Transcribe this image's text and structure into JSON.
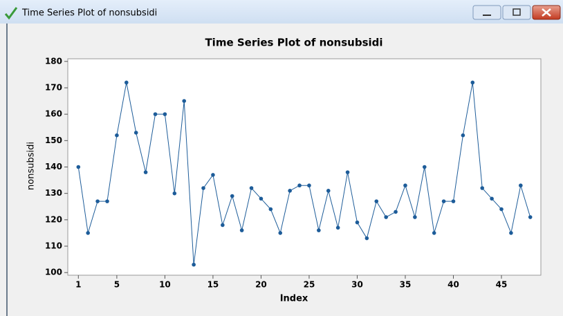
{
  "window_title": "Time Series Plot of nonsubsidi",
  "chart_data": {
    "type": "line",
    "title": "Time Series Plot of nonsubsidi",
    "x_label": "Index",
    "y_label": "nonsubsidi",
    "x": [
      1,
      2,
      3,
      4,
      5,
      6,
      7,
      8,
      9,
      10,
      11,
      12,
      13,
      14,
      15,
      16,
      17,
      18,
      19,
      20,
      21,
      22,
      23,
      24,
      25,
      26,
      27,
      28,
      29,
      30,
      31,
      32,
      33,
      34,
      35,
      36,
      37,
      38,
      39,
      40,
      41,
      42,
      43,
      44,
      45,
      46,
      47,
      48
    ],
    "series": [
      {
        "name": "nonsubsidi",
        "color": "#1d5c99",
        "values": [
          140,
          115,
          127,
          127,
          152,
          172,
          153,
          138,
          160,
          160,
          130,
          165,
          103,
          132,
          137,
          118,
          129,
          116,
          132,
          128,
          124,
          115,
          131,
          133,
          133,
          116,
          131,
          117,
          138,
          119,
          113,
          127,
          121,
          123,
          133,
          121,
          140,
          115,
          127,
          127,
          152,
          172,
          132,
          128,
          124,
          115,
          133,
          121
        ]
      }
    ],
    "xlim": [
      -0.1,
      49.1
    ],
    "xticks": [
      1,
      5,
      10,
      15,
      20,
      25,
      30,
      35,
      40,
      45
    ],
    "ylim": [
      99,
      181
    ],
    "yticks": [
      100,
      110,
      120,
      130,
      140,
      150,
      160,
      170,
      180
    ]
  }
}
